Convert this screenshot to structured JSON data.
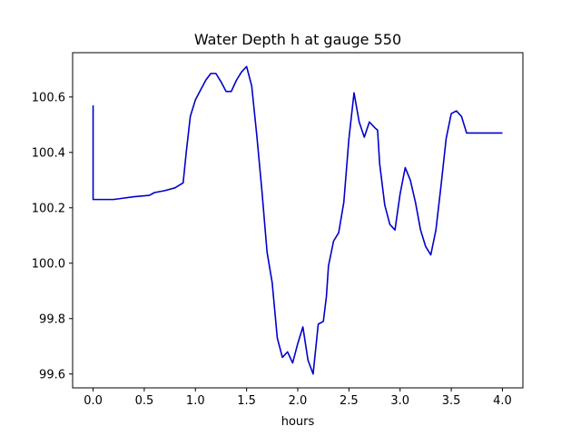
{
  "chart_data": {
    "type": "line",
    "title": "Water Depth h at gauge 550",
    "xlabel": "hours",
    "ylabel": "",
    "xlim": [
      -0.2,
      4.2
    ],
    "ylim": [
      99.55,
      100.76
    ],
    "xticks": [
      0.0,
      0.5,
      1.0,
      1.5,
      2.0,
      2.5,
      3.0,
      3.5,
      4.0
    ],
    "xtick_labels": [
      "0.0",
      "0.5",
      "1.0",
      "1.5",
      "2.0",
      "2.5",
      "3.0",
      "3.5",
      "4.0"
    ],
    "yticks": [
      99.6,
      99.8,
      100.0,
      100.2,
      100.4,
      100.6
    ],
    "ytick_labels": [
      "99.6",
      "99.8",
      "100.0",
      "100.2",
      "100.4",
      "100.6"
    ],
    "grid": false,
    "series": [
      {
        "color": "#0000cc",
        "x": [
          0.0,
          0.0,
          0.0,
          0.2,
          0.4,
          0.55,
          0.6,
          0.7,
          0.8,
          0.88,
          0.91,
          0.95,
          1.0,
          1.05,
          1.1,
          1.15,
          1.2,
          1.25,
          1.3,
          1.35,
          1.4,
          1.45,
          1.5,
          1.55,
          1.6,
          1.65,
          1.7,
          1.75,
          1.8,
          1.85,
          1.9,
          1.95,
          2.0,
          2.05,
          2.1,
          2.15,
          2.2,
          2.25,
          2.28,
          2.3,
          2.35,
          2.4,
          2.45,
          2.5,
          2.55,
          2.6,
          2.65,
          2.7,
          2.75,
          2.78,
          2.8,
          2.85,
          2.9,
          2.95,
          3.0,
          3.05,
          3.1,
          3.15,
          3.2,
          3.25,
          3.3,
          3.35,
          3.4,
          3.45,
          3.5,
          3.55,
          3.6,
          3.65,
          3.7,
          3.75,
          3.8,
          3.85,
          3.9,
          3.95,
          4.0
        ],
        "y": [
          100.57,
          100.4,
          100.23,
          100.23,
          100.24,
          100.245,
          100.255,
          100.262,
          100.272,
          100.29,
          100.4,
          100.53,
          100.59,
          100.625,
          100.66,
          100.685,
          100.685,
          100.655,
          100.62,
          100.62,
          100.66,
          100.69,
          100.71,
          100.64,
          100.46,
          100.26,
          100.04,
          99.93,
          99.73,
          99.66,
          99.68,
          99.64,
          99.71,
          99.77,
          99.65,
          99.6,
          99.78,
          99.79,
          99.88,
          99.99,
          100.08,
          100.11,
          100.22,
          100.45,
          100.615,
          100.51,
          100.455,
          100.51,
          100.49,
          100.48,
          100.36,
          100.21,
          100.14,
          100.12,
          100.25,
          100.345,
          100.3,
          100.22,
          100.12,
          100.06,
          100.03,
          100.12,
          100.28,
          100.45,
          100.54,
          100.55,
          100.53,
          100.47,
          100.47,
          100.47,
          100.47,
          100.47,
          100.47,
          100.47,
          100.47
        ]
      }
    ]
  }
}
